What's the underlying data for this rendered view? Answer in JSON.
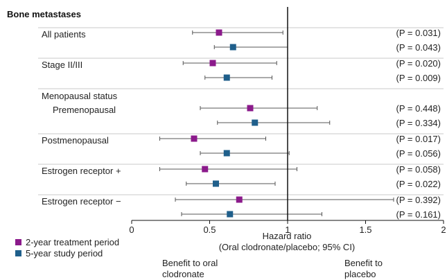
{
  "chart_data": {
    "type": "forest",
    "title": "Bone metastases",
    "reference_line": 1,
    "xlim": [
      0,
      2
    ],
    "xticks": [
      0,
      0.5,
      1,
      1.5,
      2
    ],
    "xtick_labels": [
      "0",
      "0.5",
      "1",
      "1.5",
      "2"
    ],
    "xlabel_line1": "Hazard ratio",
    "xlabel_line2": "(Oral clodronate/placebo; 95% CI)",
    "favors_left_line1": "Benefit to oral",
    "favors_left_line2": "clodronate",
    "favors_right_line1": "Benefit to",
    "favors_right_line2": "placebo",
    "series": [
      {
        "name": "2-year treatment period",
        "color": "#8b1a8b"
      },
      {
        "name": "5-year study period",
        "color": "#1f5f8b"
      }
    ],
    "groups": [
      {
        "label": "All patients",
        "header": "",
        "rows": [
          {
            "series": 0,
            "hr": 0.56,
            "lo": 0.39,
            "hi": 0.97,
            "p": "(P = 0.031)"
          },
          {
            "series": 1,
            "hr": 0.65,
            "lo": 0.53,
            "hi": 1.0,
            "p": "(P = 0.043)"
          }
        ]
      },
      {
        "label": "Stage II/III",
        "header": "",
        "rows": [
          {
            "series": 0,
            "hr": 0.52,
            "lo": 0.33,
            "hi": 0.93,
            "p": "(P = 0.020)"
          },
          {
            "series": 1,
            "hr": 0.61,
            "lo": 0.47,
            "hi": 0.9,
            "p": "(P = 0.009)"
          }
        ]
      },
      {
        "label": "Premenopausal",
        "header": "Menopausal status",
        "rows": [
          {
            "series": 0,
            "hr": 0.76,
            "lo": 0.44,
            "hi": 1.19,
            "p": "(P = 0.448)"
          },
          {
            "series": 1,
            "hr": 0.79,
            "lo": 0.55,
            "hi": 1.27,
            "p": "(P = 0.334)"
          }
        ]
      },
      {
        "label": "Postmenopausal",
        "header": "",
        "rows": [
          {
            "series": 0,
            "hr": 0.4,
            "lo": 0.18,
            "hi": 0.86,
            "p": "(P = 0.017)"
          },
          {
            "series": 1,
            "hr": 0.61,
            "lo": 0.44,
            "hi": 1.01,
            "p": "(P = 0.056)"
          }
        ]
      },
      {
        "label": "Estrogen receptor +",
        "header": "",
        "rows": [
          {
            "series": 0,
            "hr": 0.47,
            "lo": 0.18,
            "hi": 1.06,
            "p": "(P = 0.058)"
          },
          {
            "series": 1,
            "hr": 0.54,
            "lo": 0.35,
            "hi": 0.92,
            "p": "(P = 0.022)"
          }
        ]
      },
      {
        "label": "Estrogen receptor −",
        "header": "",
        "rows": [
          {
            "series": 0,
            "hr": 0.69,
            "lo": 0.28,
            "hi": 1.68,
            "p": "(P = 0.392)"
          },
          {
            "series": 1,
            "hr": 0.63,
            "lo": 0.32,
            "hi": 1.22,
            "p": "(P = 0.161)"
          }
        ]
      }
    ]
  }
}
